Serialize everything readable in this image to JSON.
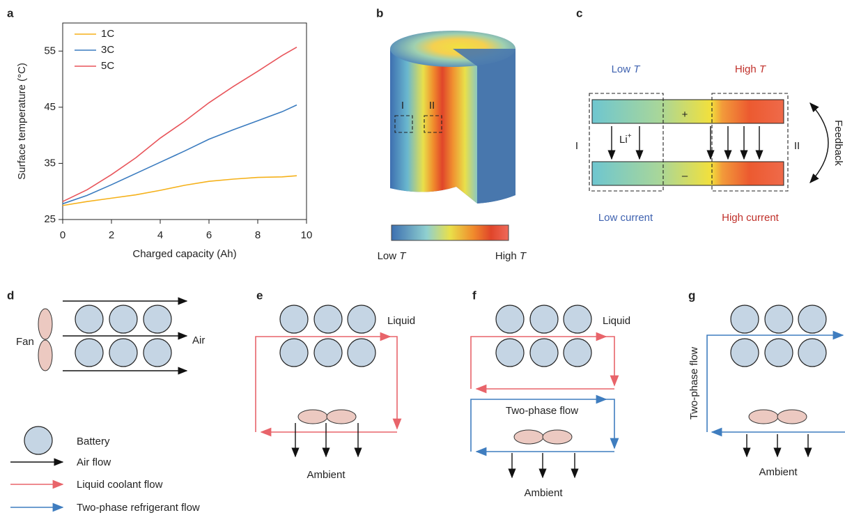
{
  "chart_data": {
    "type": "line",
    "panel_label": "a",
    "x_label": "Charged capacity (Ah)",
    "y_label": "Surface temperature (°C)",
    "x": [
      0,
      1,
      2,
      3,
      4,
      5,
      6,
      7,
      8,
      9,
      9.6
    ],
    "series": [
      {
        "name": "1C",
        "color": "#f5b11a",
        "values": [
          27.5,
          28.2,
          28.8,
          29.4,
          30.2,
          31.1,
          31.8,
          32.2,
          32.5,
          32.6,
          32.8
        ]
      },
      {
        "name": "3C",
        "color": "#3a7bbf",
        "values": [
          27.8,
          29.3,
          31.2,
          33.2,
          35.2,
          37.2,
          39.3,
          41.0,
          42.6,
          44.2,
          45.4
        ]
      },
      {
        "name": "5C",
        "color": "#e8545a",
        "values": [
          28.2,
          30.3,
          33.0,
          36.0,
          39.5,
          42.5,
          45.8,
          48.7,
          51.4,
          54.2,
          55.7
        ]
      }
    ],
    "xlim": [
      0,
      10
    ],
    "xticks": [
      0,
      2,
      4,
      6,
      8,
      10
    ],
    "ylim": [
      25,
      60
    ],
    "yticks": [
      25,
      35,
      45,
      55
    ],
    "legend": "upper left"
  },
  "panel_b": {
    "label": "b",
    "regions": [
      "I",
      "II"
    ],
    "colorbar": {
      "low": {
        "text": "Low",
        "symbol": "T"
      },
      "high": {
        "text": "High",
        "symbol": "T"
      }
    }
  },
  "panel_c": {
    "label": "c",
    "low_t": {
      "text": "Low",
      "symbol": "T"
    },
    "high_t": {
      "text": "High",
      "symbol": "T"
    },
    "plus": "+",
    "minus": "–",
    "regions": [
      "I",
      "II"
    ],
    "ion": {
      "text": "Li",
      "charge": "+"
    },
    "feedback": "Feedback",
    "low_current": "Low current",
    "high_current": "High current"
  },
  "panel_d": {
    "label": "d",
    "fan": "Fan",
    "air": "Air"
  },
  "legend": {
    "items": [
      "Battery",
      "Air flow",
      "Liquid coolant flow",
      "Two-phase refrigerant flow"
    ]
  },
  "panel_e": {
    "label": "e",
    "medium": "Liquid",
    "sink": "Ambient"
  },
  "panel_f": {
    "label": "f",
    "medium": "Liquid",
    "flow": "Two-phase flow",
    "sink": "Ambient"
  },
  "panel_g": {
    "label": "g",
    "flow": "Two-phase flow",
    "sink": "Ambient"
  }
}
